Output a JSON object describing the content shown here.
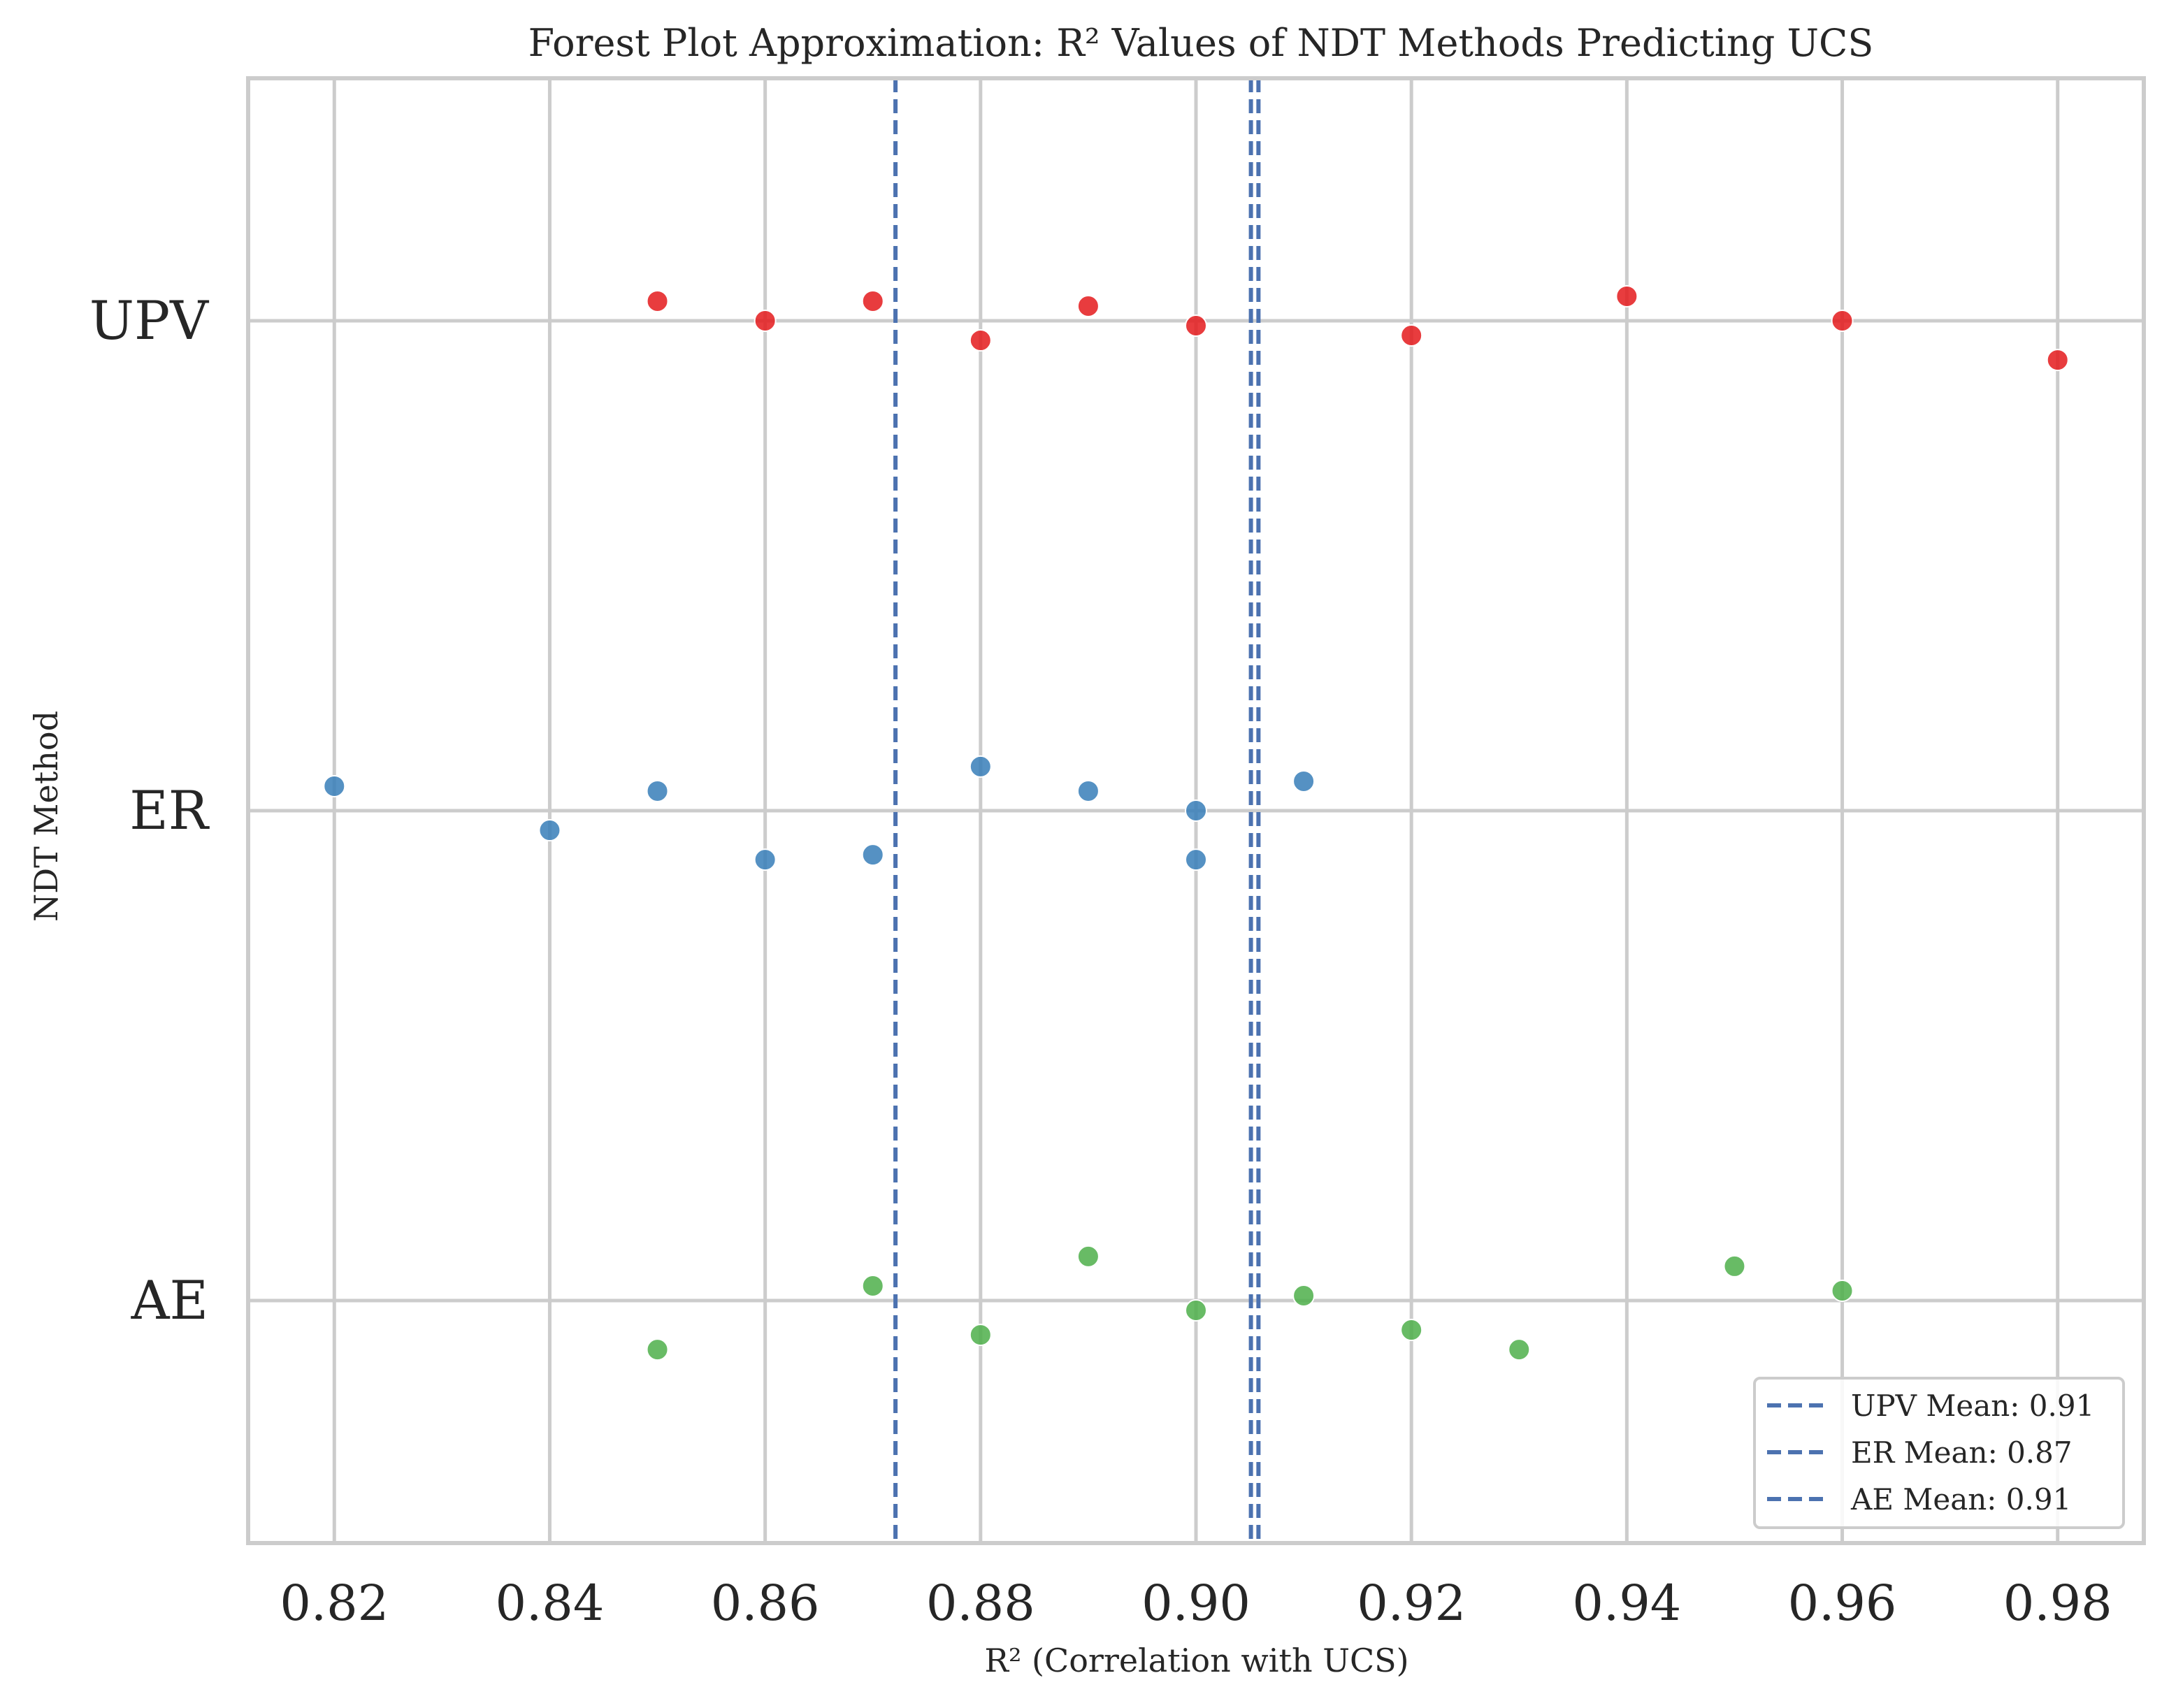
{
  "chart_data": {
    "type": "scatter",
    "title": "Forest Plot Approximation: R² Values of NDT Methods Predicting UCS",
    "xlabel": "R² (Correlation with UCS)",
    "ylabel": "NDT Method",
    "xlim": [
      0.812,
      0.988
    ],
    "x_ticks": [
      "0.82",
      "0.84",
      "0.86",
      "0.88",
      "0.90",
      "0.92",
      "0.94",
      "0.96",
      "0.98"
    ],
    "x_tick_values": [
      0.82,
      0.84,
      0.86,
      0.88,
      0.9,
      0.92,
      0.94,
      0.96,
      0.98
    ],
    "categories": [
      "UPV",
      "ER",
      "AE"
    ],
    "grid": true,
    "series": [
      {
        "name": "UPV",
        "color": "#e41a1c",
        "x": [
          0.85,
          0.86,
          0.87,
          0.88,
          0.89,
          0.9,
          0.92,
          0.94,
          0.96,
          0.98
        ],
        "jitter": [
          0.04,
          0.0,
          0.04,
          -0.04,
          0.03,
          -0.01,
          -0.03,
          0.05,
          0.0,
          -0.08
        ]
      },
      {
        "name": "ER",
        "color": "#377eb8",
        "x": [
          0.82,
          0.84,
          0.85,
          0.86,
          0.87,
          0.88,
          0.89,
          0.9,
          0.9,
          0.91
        ],
        "jitter": [
          0.05,
          -0.04,
          0.04,
          -0.1,
          -0.09,
          0.09,
          0.04,
          0.0,
          -0.1,
          0.06
        ]
      },
      {
        "name": "AE",
        "color": "#4daf4a",
        "x": [
          0.85,
          0.87,
          0.88,
          0.89,
          0.9,
          0.91,
          0.92,
          0.93,
          0.95,
          0.96
        ],
        "jitter": [
          -0.1,
          0.03,
          -0.07,
          0.09,
          -0.02,
          0.01,
          -0.06,
          -0.1,
          0.07,
          0.02
        ]
      }
    ],
    "mean_lines": [
      {
        "label": "UPV Mean: 0.91",
        "value": 0.9058,
        "color": "#4c72b0"
      },
      {
        "label": "ER Mean: 0.87",
        "value": 0.8721,
        "color": "#4c72b0"
      },
      {
        "label": "AE Mean: 0.91",
        "value": 0.9051,
        "color": "#4c72b0"
      }
    ],
    "legend_position": "lower right"
  }
}
